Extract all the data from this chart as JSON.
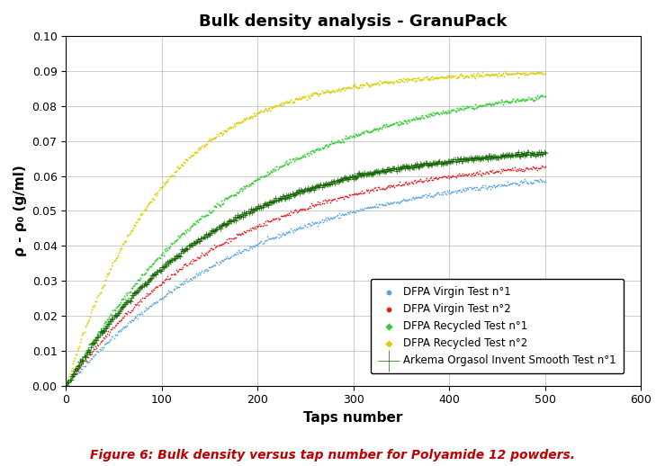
{
  "title": "Bulk density analysis - GranuPack",
  "xlabel": "Taps number",
  "ylabel": "ρ - ρ₀ (g/ml)",
  "caption": "Figure 6: Bulk density versus tap number for Polyamide 12 powders.",
  "xlim": [
    0,
    600
  ],
  "ylim": [
    0.0,
    0.1
  ],
  "yticks": [
    0.0,
    0.01,
    0.02,
    0.03,
    0.04,
    0.05,
    0.06,
    0.07,
    0.08,
    0.09,
    0.1
  ],
  "xticks": [
    0,
    100,
    200,
    300,
    400,
    500,
    600
  ],
  "series": [
    {
      "label": "DFPA Virgin Test n°1",
      "color": "#5ba3db",
      "marker": "o",
      "markersize": 1.2,
      "a": 0.064,
      "tau": 200
    },
    {
      "label": "DFPA Virgin Test n°2",
      "color": "#dd2222",
      "marker": "o",
      "markersize": 1.2,
      "a": 0.066,
      "tau": 170
    },
    {
      "label": "DFPA Recycled Test n°1",
      "color": "#33cc33",
      "marker": "D",
      "markersize": 1.2,
      "a": 0.088,
      "tau": 180
    },
    {
      "label": "DFPA Recycled Test n°2",
      "color": "#ddcc00",
      "marker": "D",
      "markersize": 1.2,
      "a": 0.09,
      "tau": 100
    },
    {
      "label": "Arkema Orgasol Invent Smooth Test n°1",
      "color": "#116600",
      "marker": "+",
      "markersize": 2.5,
      "a": 0.069,
      "tau": 150
    }
  ],
  "n_points": 500,
  "noise_scale": 0.0003,
  "background_color": "#ffffff",
  "grid_color": "#888888",
  "caption_color": "#c00000",
  "caption_fontsize": 10,
  "title_fontsize": 13,
  "axis_label_fontsize": 11,
  "legend_fontsize": 8.5
}
